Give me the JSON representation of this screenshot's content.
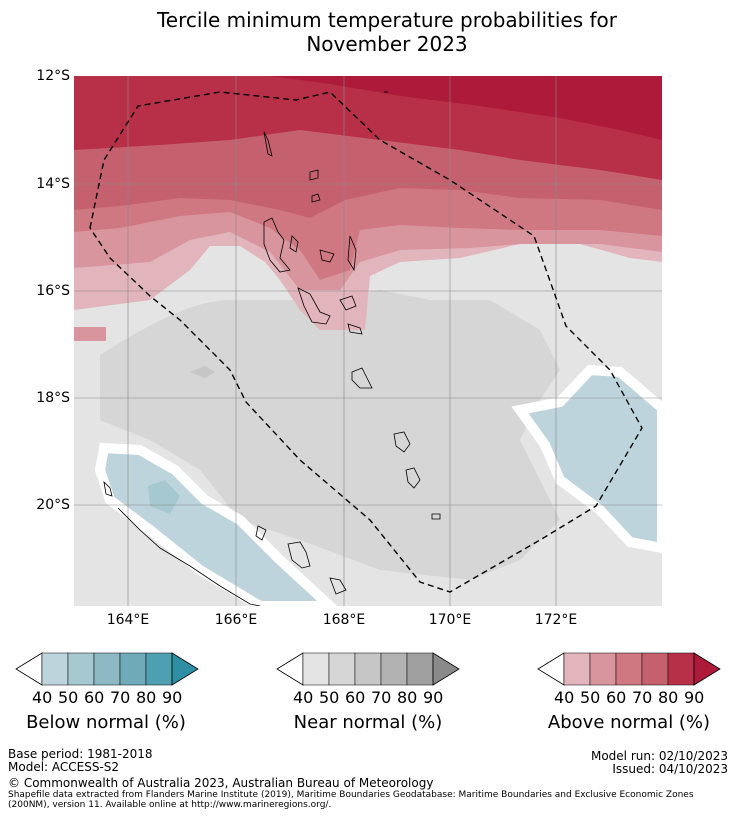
{
  "title_line1": "Tercile minimum temperature probabilities for",
  "title_line2": "November 2023",
  "lat_labels": [
    "12°S",
    "14°S",
    "16°S",
    "18°S",
    "20°S"
  ],
  "lon_labels": [
    "164°E",
    "166°E",
    "168°E",
    "170°E",
    "172°E"
  ],
  "colorbars": [
    {
      "name": "Below normal (%)",
      "ticks": [
        "40",
        "50",
        "60",
        "70",
        "80",
        "90"
      ],
      "colors": [
        "#bed4dc",
        "#a6c8d0",
        "#8cb9c4",
        "#6eaab8",
        "#4ea0b0",
        "#2e8fa4"
      ]
    },
    {
      "name": "Near normal (%)",
      "ticks": [
        "40",
        "50",
        "60",
        "70",
        "80",
        "90"
      ],
      "colors": [
        "#e4e4e4",
        "#d6d6d6",
        "#c6c6c6",
        "#b2b2b2",
        "#a0a0a0",
        "#8a8a8a"
      ]
    },
    {
      "name": "Above normal (%)",
      "ticks": [
        "40",
        "50",
        "60",
        "70",
        "80",
        "90"
      ],
      "colors": [
        "#e2b4bb",
        "#d8959e",
        "#cf7882",
        "#c5616e",
        "#b83048",
        "#ad1a3a"
      ]
    }
  ],
  "footer": {
    "base_period": "Base period: 1981-2018",
    "model": "Model: ACCESS-S2",
    "model_run": "Model run: 02/10/2023",
    "issued": "Issued: 04/10/2023",
    "copyright": "© Commonwealth of Australia 2023, Australian Bureau of Meteorology",
    "shapefile_line1": "Shapefile data extracted from Flanders Marine Institute (2019), Maritime Boundaries Geodatabase: Maritime Boundaries and Exclusive Economic Zones",
    "shapefile_line2": "(200NM), version 11. Available online at http://www.marineregions.org/."
  }
}
